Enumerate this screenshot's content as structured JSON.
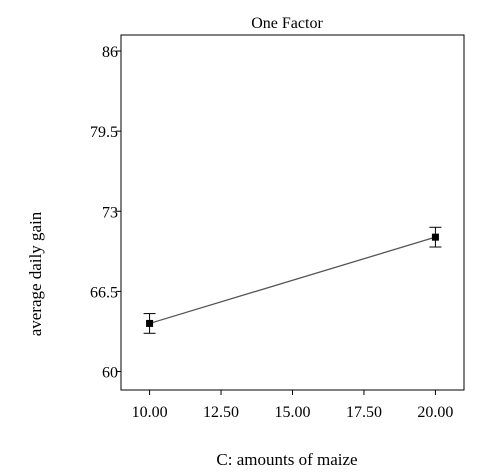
{
  "chart_data": {
    "type": "line",
    "title": "One Factor",
    "xlabel": "C: amounts of maize",
    "ylabel": "average daily gain",
    "xlim": [
      9,
      21
    ],
    "ylim": [
      58.5,
      87.3
    ],
    "xticks": [
      10,
      12.5,
      15,
      17.5,
      20
    ],
    "xtick_labels": [
      "10.00",
      "12.50",
      "15.00",
      "17.50",
      "20.00"
    ],
    "yticks": [
      60,
      66.5,
      73,
      79.5,
      86
    ],
    "ytick_labels": [
      "60",
      "66.5",
      "73",
      "79.5",
      "86"
    ],
    "grid": false,
    "legend": "none",
    "series": [
      {
        "x": [
          10,
          20
        ],
        "y": [
          63.9,
          70.9
        ],
        "error_low": [
          63.1,
          70.1
        ],
        "error_high": [
          64.7,
          71.7
        ]
      }
    ],
    "colors": {
      "line": "#555555",
      "marker": "#000000",
      "axes": "#000000"
    }
  }
}
